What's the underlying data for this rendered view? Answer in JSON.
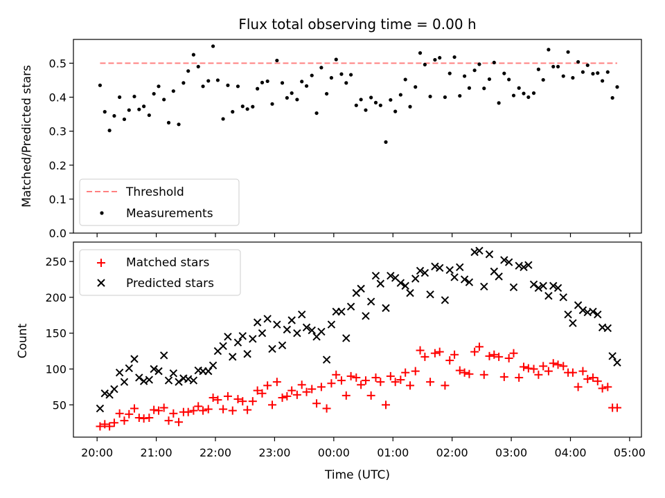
{
  "figure": {
    "title": "Flux total observing time = 0.00 h"
  },
  "colors": {
    "threshold": "#ff8080",
    "measurements": "#000000",
    "matched": "#ff0000",
    "predicted": "#000000"
  },
  "chart_data": [
    {
      "type": "scatter",
      "title": "Flux total observing time = 0.00 h",
      "xlabel": "",
      "ylabel": "Matched/Predicted stars",
      "xlim_hours": [
        -0.4,
        9.2
      ],
      "ylim": [
        0.0,
        0.57
      ],
      "yticks": [
        0.0,
        0.1,
        0.2,
        0.3,
        0.4,
        0.5
      ],
      "ytick_labels": [
        "0.0",
        "0.1",
        "0.2",
        "0.3",
        "0.4",
        "0.5"
      ],
      "x_time_hours_from_2000": [
        0.05,
        0.13,
        0.21,
        0.29,
        0.38,
        0.46,
        0.54,
        0.63,
        0.71,
        0.79,
        0.88,
        0.96,
        1.04,
        1.13,
        1.21,
        1.29,
        1.38,
        1.46,
        1.54,
        1.63,
        1.71,
        1.79,
        1.88,
        1.96,
        2.04,
        2.13,
        2.21,
        2.29,
        2.38,
        2.46,
        2.54,
        2.63,
        2.71,
        2.79,
        2.88,
        2.96,
        3.04,
        3.13,
        3.21,
        3.29,
        3.38,
        3.46,
        3.54,
        3.63,
        3.71,
        3.79,
        3.88,
        3.96,
        4.04,
        4.13,
        4.21,
        4.29,
        4.38,
        4.46,
        4.54,
        4.63,
        4.71,
        4.79,
        4.88,
        4.96,
        5.04,
        5.13,
        5.21,
        5.29,
        5.38,
        5.46,
        5.54,
        5.63,
        5.71,
        5.79,
        5.88,
        5.96,
        6.04,
        6.13,
        6.21,
        6.29,
        6.38,
        6.46,
        6.54,
        6.63,
        6.71,
        6.79,
        6.88,
        6.96,
        7.04,
        7.13,
        7.21,
        7.29,
        7.38,
        7.46,
        7.54,
        7.63,
        7.71,
        7.79,
        7.88,
        7.96,
        8.04,
        8.13,
        8.21,
        8.29,
        8.38,
        8.46,
        8.54,
        8.63,
        8.71,
        8.79
      ],
      "series": [
        {
          "name": "Threshold",
          "style": "dashed-line",
          "x_time_hours_from_2000": [
            0.05,
            8.79
          ],
          "values": [
            0.5,
            0.5
          ]
        },
        {
          "name": "Measurements",
          "style": "dots",
          "values": [
            0.435,
            0.357,
            0.302,
            0.345,
            0.4,
            0.335,
            0.362,
            0.402,
            0.364,
            0.373,
            0.347,
            0.41,
            0.432,
            0.393,
            0.325,
            0.418,
            0.32,
            0.442,
            0.477,
            0.525,
            0.49,
            0.432,
            0.448,
            0.55,
            0.45,
            0.336,
            0.435,
            0.357,
            0.432,
            0.373,
            0.365,
            0.372,
            0.425,
            0.443,
            0.447,
            0.38,
            0.508,
            0.442,
            0.398,
            0.412,
            0.393,
            0.446,
            0.433,
            0.464,
            0.353,
            0.487,
            0.41,
            0.457,
            0.511,
            0.468,
            0.442,
            0.466,
            0.376,
            0.393,
            0.362,
            0.399,
            0.384,
            0.376,
            0.268,
            0.392,
            0.358,
            0.407,
            0.452,
            0.372,
            0.43,
            0.53,
            0.496,
            0.402,
            0.51,
            0.516,
            0.4,
            0.47,
            0.518,
            0.404,
            0.462,
            0.427,
            0.479,
            0.497,
            0.426,
            0.453,
            0.502,
            0.383,
            0.47,
            0.452,
            0.405,
            0.427,
            0.411,
            0.4,
            0.412,
            0.482,
            0.451,
            0.54,
            0.49,
            0.49,
            0.462,
            0.533,
            0.457,
            0.504,
            0.474,
            0.494,
            0.469,
            0.471,
            0.448,
            0.474,
            0.398,
            0.43
          ]
        }
      ],
      "legend_location": "lower-left"
    },
    {
      "type": "scatter",
      "title": "",
      "xlabel": "Time (UTC)",
      "ylabel": "Count",
      "xlim_hours": [
        -0.4,
        9.2
      ],
      "ylim": [
        5,
        277
      ],
      "yticks": [
        50,
        100,
        150,
        200,
        250
      ],
      "ytick_labels": [
        "50",
        "100",
        "150",
        "200",
        "250"
      ],
      "xticks_hours_from_2000": [
        0,
        1,
        2,
        3,
        4,
        5,
        6,
        7,
        8,
        9
      ],
      "xtick_labels": [
        "20:00",
        "21:00",
        "22:00",
        "23:00",
        "00:00",
        "01:00",
        "02:00",
        "03:00",
        "04:00",
        "05:00"
      ],
      "x_time_hours_from_2000": [
        0.05,
        0.13,
        0.21,
        0.29,
        0.38,
        0.46,
        0.54,
        0.63,
        0.71,
        0.79,
        0.88,
        0.96,
        1.04,
        1.13,
        1.21,
        1.29,
        1.38,
        1.46,
        1.54,
        1.63,
        1.71,
        1.79,
        1.88,
        1.96,
        2.04,
        2.13,
        2.21,
        2.29,
        2.38,
        2.46,
        2.54,
        2.63,
        2.71,
        2.79,
        2.88,
        2.96,
        3.04,
        3.13,
        3.21,
        3.29,
        3.38,
        3.46,
        3.54,
        3.63,
        3.71,
        3.79,
        3.88,
        3.96,
        4.04,
        4.13,
        4.21,
        4.29,
        4.38,
        4.46,
        4.54,
        4.63,
        4.71,
        4.79,
        4.88,
        4.96,
        5.04,
        5.13,
        5.21,
        5.29,
        5.38,
        5.46,
        5.54,
        5.63,
        5.71,
        5.79,
        5.88,
        5.96,
        6.04,
        6.13,
        6.21,
        6.29,
        6.38,
        6.46,
        6.54,
        6.63,
        6.71,
        6.79,
        6.88,
        6.96,
        7.04,
        7.13,
        7.21,
        7.29,
        7.38,
        7.46,
        7.54,
        7.63,
        7.71,
        7.79,
        7.88,
        7.96,
        8.04,
        8.13,
        8.21,
        8.29,
        8.38,
        8.46,
        8.54,
        8.63,
        8.71,
        8.79
      ],
      "series": [
        {
          "name": "Matched stars",
          "marker": "+",
          "values": [
            20,
            23,
            20,
            25,
            38,
            28,
            37,
            45,
            32,
            31,
            32,
            43,
            42,
            46,
            28,
            38,
            26,
            40,
            40,
            42,
            48,
            42,
            44,
            60,
            57,
            44,
            62,
            42,
            58,
            55,
            43,
            55,
            70,
            66,
            77,
            50,
            82,
            60,
            62,
            70,
            64,
            78,
            68,
            72,
            52,
            75,
            45,
            80,
            92,
            84,
            63,
            90,
            88,
            78,
            84,
            63,
            88,
            82,
            50,
            90,
            82,
            85,
            95,
            77,
            97,
            126,
            117,
            82,
            122,
            124,
            77,
            112,
            120,
            98,
            95,
            93,
            124,
            131,
            92,
            118,
            120,
            117,
            89,
            115,
            122,
            88,
            103,
            101,
            100,
            92,
            104,
            97,
            108,
            106,
            104,
            95,
            95,
            75,
            97,
            86,
            88,
            83,
            73,
            75,
            46,
            46
          ]
        },
        {
          "name": "Predicted stars",
          "marker": "x",
          "values": [
            45,
            66,
            64,
            72,
            95,
            82,
            101,
            114,
            88,
            83,
            85,
            100,
            97,
            119,
            84,
            94,
            82,
            87,
            86,
            84,
            98,
            97,
            97,
            105,
            125,
            132,
            145,
            117,
            137,
            146,
            121,
            142,
            165,
            150,
            170,
            128,
            162,
            133,
            155,
            168,
            150,
            176,
            158,
            154,
            145,
            152,
            113,
            162,
            180,
            180,
            143,
            187,
            206,
            212,
            174,
            194,
            230,
            219,
            185,
            230,
            227,
            220,
            216,
            206,
            226,
            237,
            234,
            204,
            243,
            241,
            196,
            238,
            228,
            242,
            225,
            221,
            263,
            265,
            215,
            260,
            236,
            229,
            252,
            249,
            214,
            244,
            242,
            245,
            218,
            213,
            216,
            202,
            216,
            213,
            200,
            176,
            164,
            189,
            182,
            179,
            180,
            176,
            158,
            157,
            118,
            109
          ]
        }
      ],
      "legend_location": "upper-left"
    }
  ]
}
